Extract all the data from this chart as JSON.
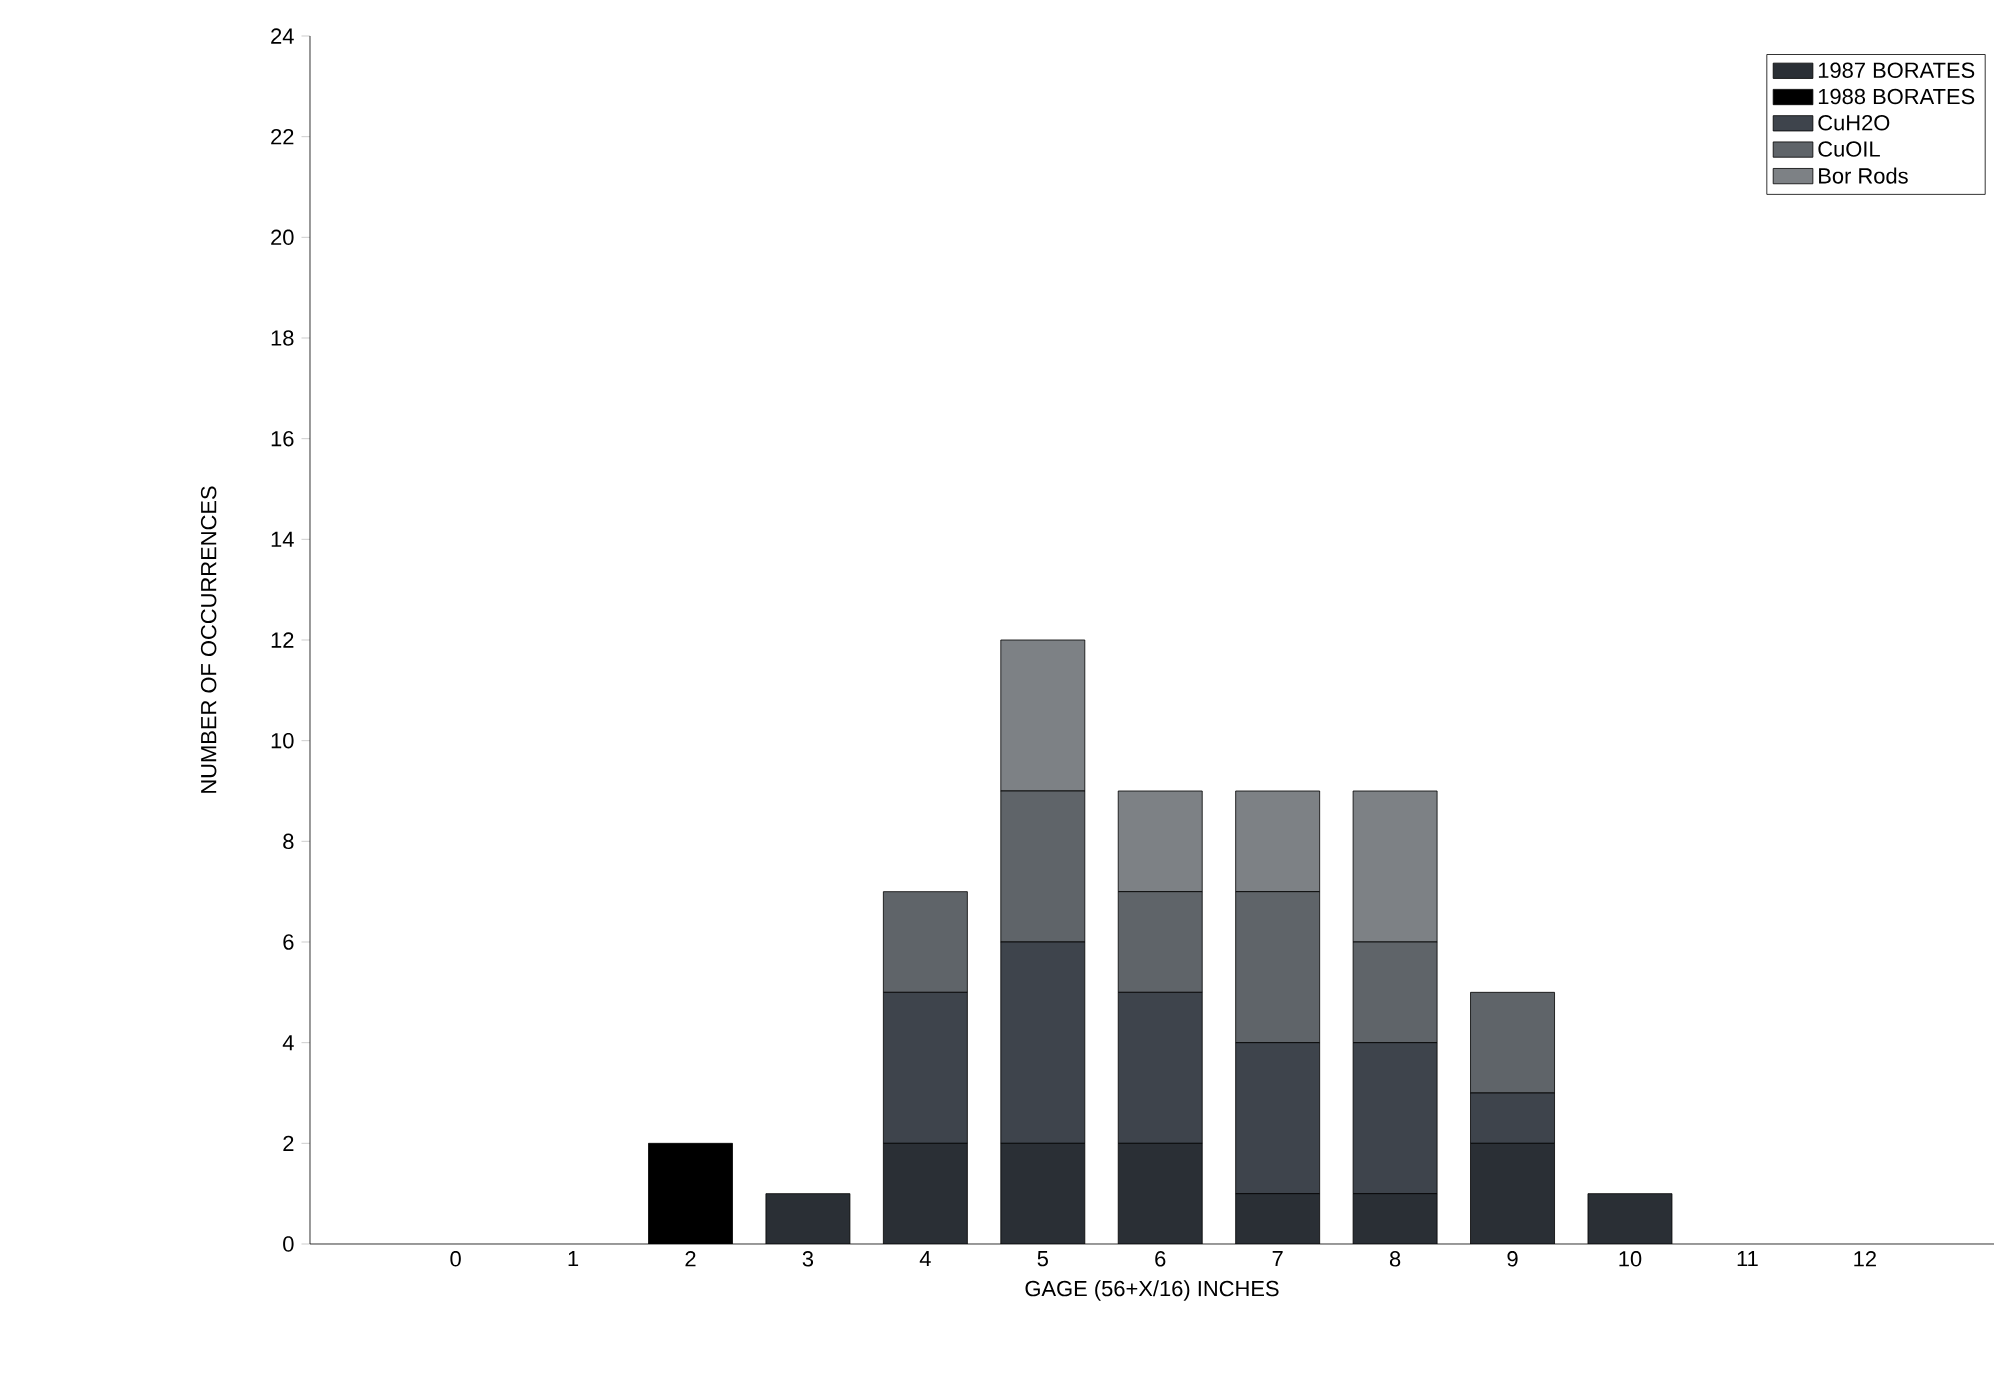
{
  "chart_data": {
    "type": "bar",
    "stacked": true,
    "xlabel": "GAGE (56+X/16) INCHES",
    "ylabel": "NUMBER OF OCCURRENCES",
    "categories": [
      "0",
      "1",
      "2",
      "3",
      "4",
      "5",
      "6",
      "7",
      "8",
      "9",
      "10",
      "11",
      "12"
    ],
    "series": [
      {
        "name": "1987 BORATES",
        "color": "#2a2f35",
        "values": [
          0,
          0,
          0,
          1,
          2,
          2,
          2,
          1,
          1,
          2,
          1,
          0,
          0
        ]
      },
      {
        "name": "1988 BORATES",
        "color": "#000000",
        "values": [
          0,
          0,
          2,
          0,
          0,
          0,
          0,
          0,
          0,
          0,
          0,
          0,
          0
        ]
      },
      {
        "name": "CuH2O",
        "color": "#3e444c",
        "values": [
          0,
          0,
          0,
          0,
          3,
          4,
          3,
          3,
          3,
          1,
          0,
          0,
          0
        ]
      },
      {
        "name": "CuOIL",
        "color": "#5f6469",
        "values": [
          0,
          0,
          0,
          0,
          2,
          3,
          2,
          3,
          2,
          2,
          0,
          0,
          0
        ]
      },
      {
        "name": "Bor Rods",
        "color": "#7d8185",
        "values": [
          0,
          0,
          0,
          0,
          0,
          3,
          2,
          2,
          3,
          0,
          0,
          0,
          0
        ]
      }
    ],
    "ylim": [
      0,
      24
    ],
    "yticks": [
      0,
      2,
      4,
      6,
      8,
      10,
      12,
      14,
      16,
      18,
      20,
      22,
      24
    ],
    "grid": false,
    "legend": "top right"
  }
}
